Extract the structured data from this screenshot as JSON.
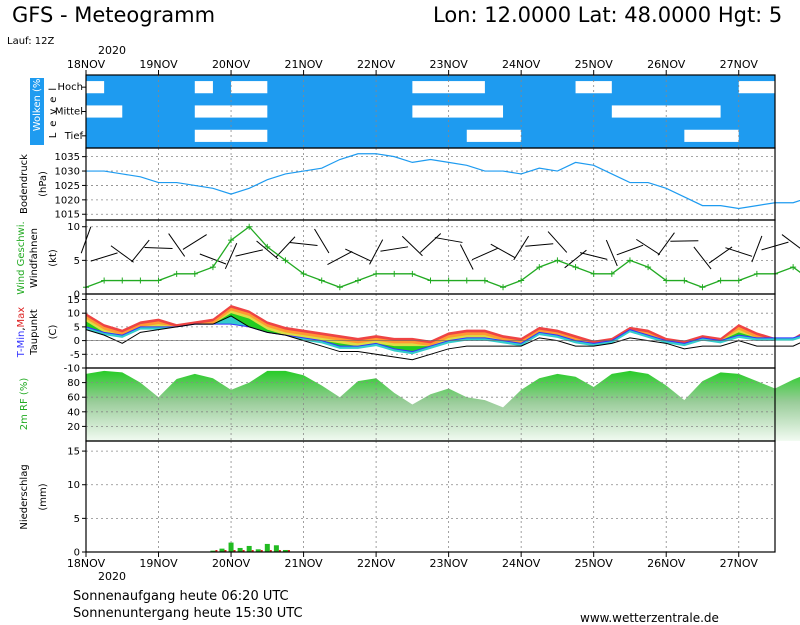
{
  "header": {
    "title": "GFS - Meteogramm",
    "location": "Lon: 12.0000 Lat: 48.0000 Hgt: 5",
    "run": "Lauf: 12Z"
  },
  "dates": {
    "year_top": "2020",
    "year_bottom": "2020",
    "labels": [
      "18NOV",
      "19NOV",
      "20NOV",
      "21NOV",
      "22NOV",
      "23NOV",
      "24NOV",
      "25NOV",
      "26NOV",
      "27NOV"
    ]
  },
  "footer": {
    "sunrise": "Sonnenaufgang heute 06:20 UTC",
    "sunset": "Sonnenuntergang heute 15:30 UTC",
    "site": "www.wetterzentrale.de"
  },
  "colors": {
    "cloud_blue": "#1e9bf0",
    "pressure_line": "#1e9bf0",
    "wind_green": "#22aa22",
    "tmax_orange": "#ff9933",
    "tmin_blue": "#3333ff",
    "rh_green": "#22cc22",
    "precip_green": "#22bb22",
    "precip_red": "#dd2222"
  },
  "chart_data": [
    {
      "type": "heatmap",
      "panel": "clouds",
      "ylabel_parts": {
        "main": "Wolken (%)",
        "side": "Level"
      },
      "levels": [
        "Hoch",
        "Mittel",
        "Tief"
      ],
      "clear_gaps": [
        {
          "level": "Hoch",
          "start": "2020-11-18T00",
          "end": "2020-11-18T06"
        },
        {
          "level": "Hoch",
          "start": "2020-11-19T12",
          "end": "2020-11-19T18"
        },
        {
          "level": "Hoch",
          "start": "2020-11-20T00",
          "end": "2020-11-20T12"
        },
        {
          "level": "Hoch",
          "start": "2020-11-22T12",
          "end": "2020-11-23T12"
        },
        {
          "level": "Hoch",
          "start": "2020-11-24T18",
          "end": "2020-11-25T06"
        },
        {
          "level": "Hoch",
          "start": "2020-11-27T00",
          "end": "2020-11-27T12"
        },
        {
          "level": "Mittel",
          "start": "2020-11-18T00",
          "end": "2020-11-18T12"
        },
        {
          "level": "Mittel",
          "start": "2020-11-19T12",
          "end": "2020-11-20T12"
        },
        {
          "level": "Mittel",
          "start": "2020-11-22T12",
          "end": "2020-11-23T18"
        },
        {
          "level": "Mittel",
          "start": "2020-11-25T06",
          "end": "2020-11-26T18"
        },
        {
          "level": "Tief",
          "start": "2020-11-19T12",
          "end": "2020-11-20T12"
        },
        {
          "level": "Tief",
          "start": "2020-11-23T06",
          "end": "2020-11-24T00"
        },
        {
          "level": "Tief",
          "start": "2020-11-26T06",
          "end": "2020-11-27T00"
        }
      ]
    },
    {
      "type": "line",
      "panel": "pressure",
      "ylabel_parts": {
        "main": "Bodendruck",
        "unit": "(hPa)"
      },
      "ylim": [
        1013,
        1038
      ],
      "yticks": [
        1015,
        1020,
        1025,
        1030,
        1035
      ],
      "x_start": "2020-11-18T00",
      "step_hours": 6,
      "values": [
        1030,
        1030,
        1029,
        1028,
        1026,
        1026,
        1025,
        1024,
        1022,
        1024,
        1027,
        1029,
        1030,
        1031,
        1034,
        1036,
        1036,
        1035,
        1033,
        1034,
        1033,
        1032,
        1030,
        1030,
        1029,
        1031,
        1030,
        1033,
        1032,
        1029,
        1026,
        1026,
        1024,
        1021,
        1018,
        1018,
        1017,
        1018,
        1019,
        1019,
        1021,
        1020,
        1019,
        1017
      ]
    },
    {
      "type": "line",
      "panel": "wind",
      "ylabel_parts": {
        "main": "Wind Geschwi.",
        "sub": "Windfahnen",
        "unit": "(kt)"
      },
      "ylim": [
        0,
        11
      ],
      "yticks": [
        0,
        5,
        10
      ],
      "x_start": "2020-11-18T00",
      "step_hours": 6,
      "values": [
        1,
        2,
        2,
        2,
        2,
        3,
        3,
        4,
        8,
        10,
        7,
        5,
        3,
        2,
        1,
        2,
        3,
        3,
        3,
        2,
        2,
        2,
        2,
        1,
        2,
        4,
        5,
        4,
        3,
        3,
        5,
        4,
        2,
        2,
        1,
        2,
        2,
        3,
        3,
        4,
        2,
        1,
        1,
        1
      ]
    },
    {
      "type": "area",
      "panel": "temperature",
      "ylabel_parts": {
        "t": "T-",
        "min": "Min",
        "sep": ",",
        "max": "Max",
        "sub": "Taupunkt",
        "unit": "(C)"
      },
      "ylim": [
        -10,
        17
      ],
      "yticks": [
        -10,
        -5,
        0,
        5,
        10,
        15
      ],
      "x_start": "2020-11-18T00",
      "step_hours": 6,
      "tmax": [
        10,
        6,
        4,
        7,
        8,
        6,
        7,
        8,
        13,
        11,
        7,
        5,
        4,
        3,
        2,
        1,
        2,
        1,
        1,
        0,
        3,
        4,
        4,
        2,
        1,
        5,
        4,
        2,
        0,
        1,
        5,
        4,
        1,
        0,
        2,
        1,
        6,
        3,
        1,
        1,
        5,
        4,
        3,
        6
      ],
      "tmin": [
        5,
        3,
        2,
        5,
        5,
        5,
        6,
        6,
        6,
        5,
        3,
        2,
        1,
        0,
        -2,
        -2,
        -1,
        -3,
        -4,
        -2,
        0,
        1,
        1,
        0,
        -1,
        3,
        2,
        0,
        -1,
        0,
        4,
        2,
        0,
        -1,
        1,
        0,
        2,
        1,
        1,
        1,
        3,
        3,
        2,
        3
      ],
      "dewpoint": [
        4,
        2,
        -1,
        3,
        4,
        5,
        6,
        6,
        9,
        5,
        3,
        2,
        0,
        -2,
        -4,
        -4,
        -5,
        -6,
        -7,
        -5,
        -3,
        -2,
        -2,
        -2,
        -2,
        1,
        0,
        -2,
        -2,
        -1,
        1,
        0,
        -1,
        -3,
        -2,
        -2,
        0,
        -2,
        -2,
        -2,
        1,
        2,
        1,
        0
      ]
    },
    {
      "type": "area",
      "panel": "humidity",
      "ylabel_parts": {
        "main": "2m RF (%)"
      },
      "ylim": [
        0,
        100
      ],
      "yticks": [
        20,
        40,
        60,
        80
      ],
      "x_start": "2020-11-18T00",
      "step_hours": 6,
      "values": [
        92,
        96,
        94,
        80,
        60,
        85,
        92,
        86,
        70,
        80,
        96,
        96,
        90,
        76,
        60,
        82,
        86,
        66,
        50,
        64,
        72,
        60,
        56,
        46,
        70,
        86,
        92,
        88,
        74,
        92,
        96,
        92,
        76,
        56,
        82,
        94,
        92,
        82,
        72,
        84,
        94,
        96,
        98,
        96
      ]
    },
    {
      "type": "bar",
      "panel": "precipitation",
      "ylabel_parts": {
        "main": "Niederschlag",
        "unit": "(mm)"
      },
      "ylim": [
        0,
        16.5
      ],
      "yticks": [
        0,
        5,
        10,
        15
      ],
      "x_start": "2020-11-19T18",
      "step_hours": 3,
      "values": [
        0.2,
        0.5,
        1.4,
        0.6,
        0.9,
        0.4,
        1.2,
        1.0,
        0.3
      ]
    }
  ]
}
